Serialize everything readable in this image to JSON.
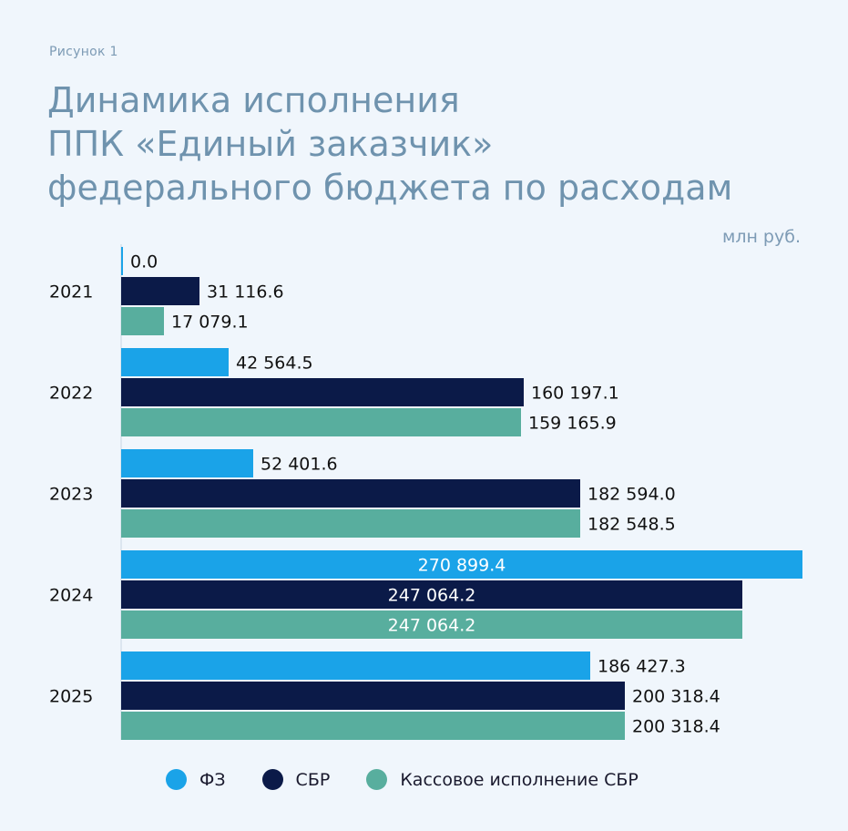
{
  "figure_label": "Рисунок 1",
  "title_lines": [
    "Динамика исполнения",
    "ППК «Единый заказчик»",
    "федерального бюджета по расходам"
  ],
  "unit": "млн руб.",
  "colors": {
    "fz": "#1aa3e8",
    "sbr": "#0b1a48",
    "kassa": "#58ae9e",
    "inside_label": "#ffffff",
    "outside_label": "#111111"
  },
  "chart_data": {
    "type": "bar",
    "orientation": "horizontal",
    "title": "Динамика исполнения ППК «Единый заказчик» федерального бюджета по расходам",
    "ylabel": "млн руб.",
    "categories": [
      "2021",
      "2022",
      "2023",
      "2024",
      "2025"
    ],
    "series": [
      {
        "name": "ФЗ",
        "values": [
          0.0,
          42564.5,
          52401.6,
          270899.4,
          186427.3
        ],
        "labels": [
          "0.0",
          "42 564.5",
          "52 401.6",
          "270 899.4",
          "186 427.3"
        ]
      },
      {
        "name": "СБР",
        "values": [
          31116.6,
          160197.1,
          182594.0,
          247064.2,
          200318.4
        ],
        "labels": [
          "31 116.6",
          "160 197.1",
          "182 594.0",
          "247 064.2",
          "200 318.4"
        ]
      },
      {
        "name": "Кассовое исполнение СБР",
        "values": [
          17079.1,
          159165.9,
          182548.5,
          247064.2,
          200318.4
        ],
        "labels": [
          "17 079.1",
          "159 165.9",
          "182 548.5",
          "247 064.2",
          "200 318.4"
        ]
      }
    ],
    "xlim": [
      0,
      270899.4
    ],
    "legend_position": "bottom",
    "grid": false
  }
}
